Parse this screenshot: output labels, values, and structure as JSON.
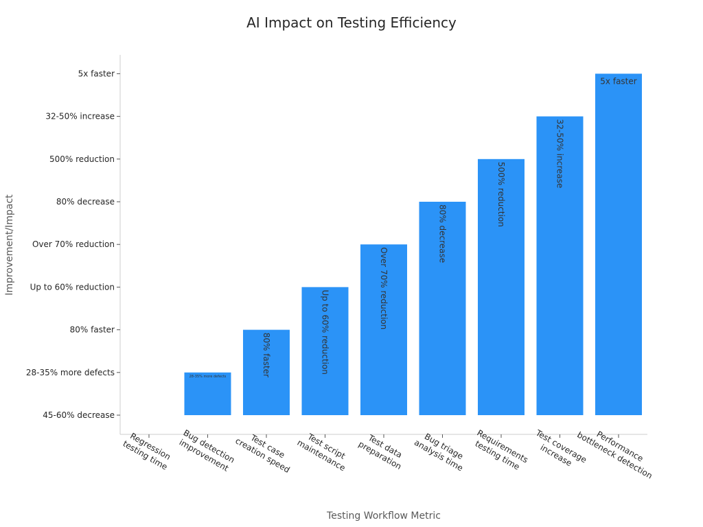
{
  "chart_data": {
    "type": "bar",
    "title": "AI Impact on Testing Efficiency",
    "xlabel": "Testing Workflow Metric",
    "ylabel": "Improvement/Impact",
    "categories": [
      "Regression testing time",
      "Bug detection improvement",
      "Test case creation speed",
      "Test script maintenance",
      "Test data preparation",
      "Bug triage analysis time",
      "Requirements testing time",
      "Test coverage increase",
      "Performance bottleneck detection"
    ],
    "category_tick_lines": [
      [
        "Regression",
        "testing time"
      ],
      [
        "Bug detection",
        "improvement"
      ],
      [
        "Test case",
        "creation speed"
      ],
      [
        "Test script",
        "maintenance"
      ],
      [
        "Test data",
        "preparation"
      ],
      [
        "Bug triage",
        "analysis time"
      ],
      [
        "Requirements",
        "testing time"
      ],
      [
        "Test coverage",
        "increase"
      ],
      [
        "Performance",
        "bottleneck detection"
      ]
    ],
    "y_ticks": [
      "45-60% decrease",
      "28-35% more defects",
      "80% faster",
      "Up to 60% reduction",
      "Over 70% reduction",
      "80% decrease",
      "500% reduction",
      "32-50% increase",
      "5x faster"
    ],
    "values": [
      "45-60% decrease",
      "28-35% more defects",
      "80% faster",
      "Up to 60% reduction",
      "Over 70% reduction",
      "80% decrease",
      "500% reduction",
      "32-50% increase",
      "5x faster"
    ],
    "bar_labels": [
      "",
      "28-35% more defects",
      "80% faster",
      "Up to 60% reduction",
      "Over 70% reduction",
      "80% decrease",
      "500% reduction",
      "32-50% increase",
      "5x faster"
    ],
    "bar_color": "#2b93f7",
    "grid": false,
    "legend": "none"
  }
}
